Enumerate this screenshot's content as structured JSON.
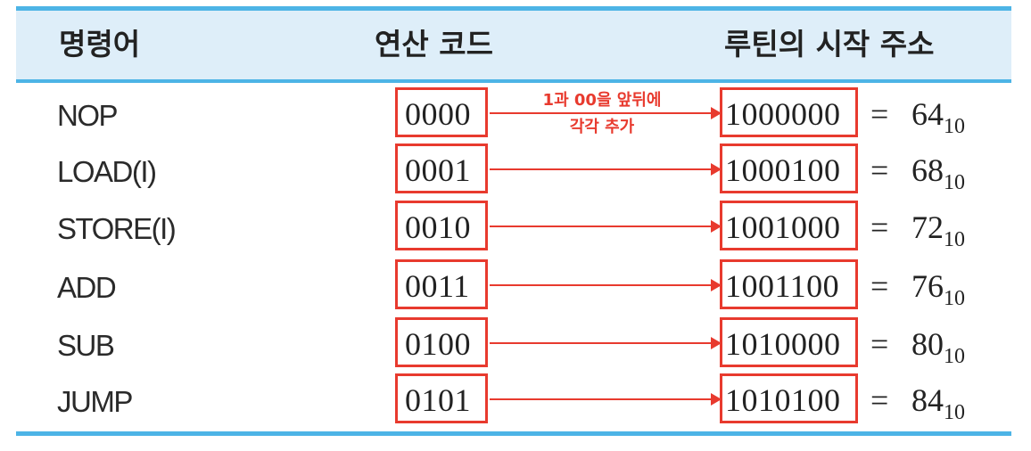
{
  "header": {
    "col_instruction": "명령어",
    "col_opcode": "연산 코드",
    "col_address": "루틴의 시작 주소"
  },
  "annotation": {
    "line1": "1과 00을 앞뒤에",
    "line2": "각각 추가"
  },
  "rows": [
    {
      "instruction": "NOP",
      "opcode": "0000",
      "address": "1000000",
      "equals": "=",
      "decimal": "64",
      "base": "10"
    },
    {
      "instruction": "LOAD(I)",
      "opcode": "0001",
      "address": "1000100",
      "equals": "=",
      "decimal": "68",
      "base": "10"
    },
    {
      "instruction": "STORE(I)",
      "opcode": "0010",
      "address": "1001000",
      "equals": "=",
      "decimal": "72",
      "base": "10"
    },
    {
      "instruction": "ADD",
      "opcode": "0011",
      "address": "1001100",
      "equals": "=",
      "decimal": "76",
      "base": "10"
    },
    {
      "instruction": "SUB",
      "opcode": "0100",
      "address": "1010000",
      "equals": "=",
      "decimal": "80",
      "base": "10"
    },
    {
      "instruction": "JUMP",
      "opcode": "0101",
      "address": "1010100",
      "equals": "=",
      "decimal": "84",
      "base": "10"
    }
  ],
  "colors": {
    "accent_rule": "#4db4e6",
    "header_background": "#deeef9",
    "highlight": "#e83a2e"
  }
}
